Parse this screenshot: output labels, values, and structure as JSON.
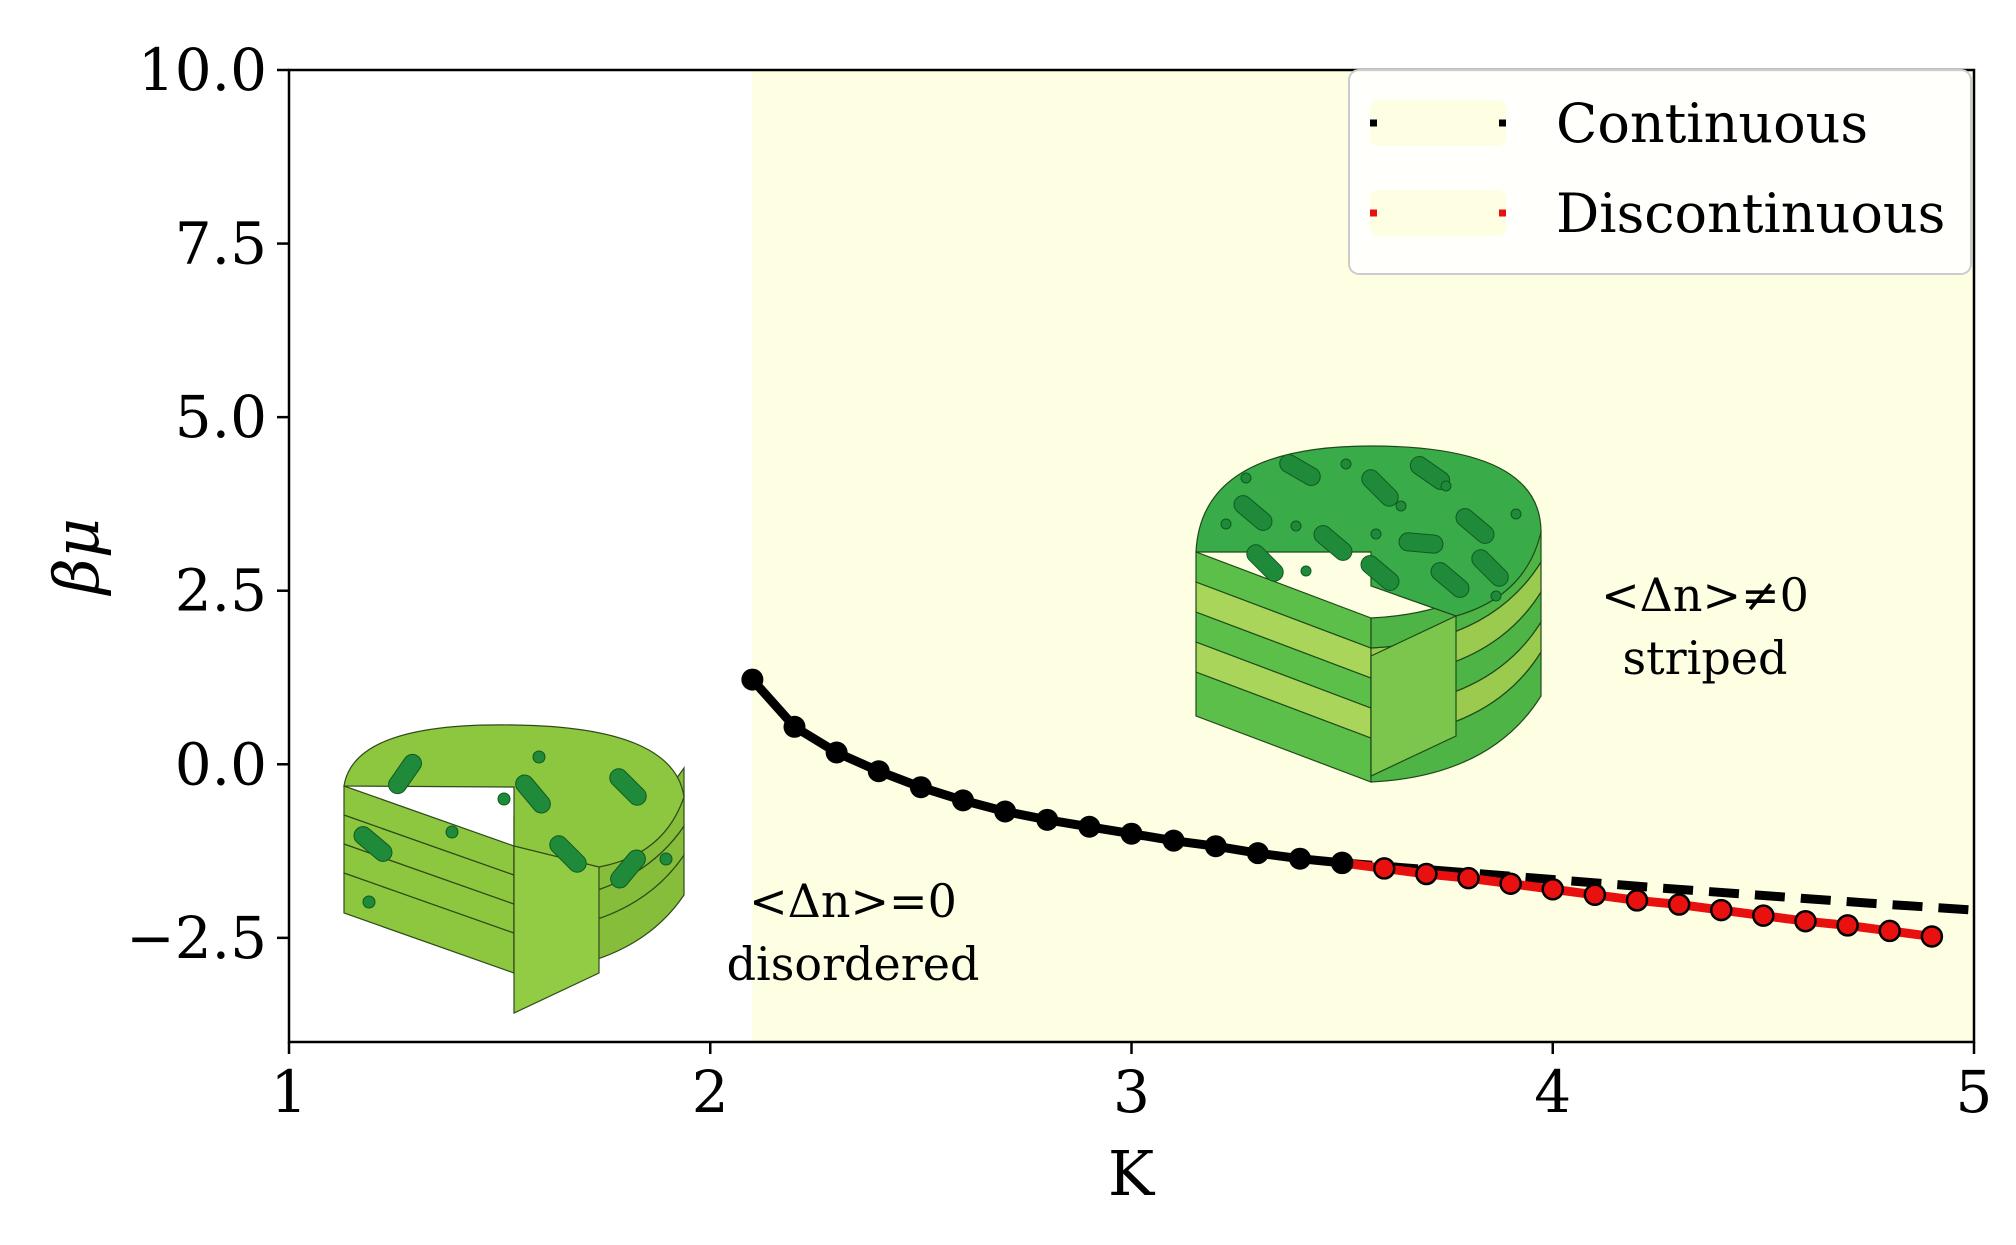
{
  "chart_data": {
    "type": "line",
    "xlabel": "K",
    "ylabel": "βμ",
    "xlim": [
      1,
      5
    ],
    "ylim": [
      -4,
      10
    ],
    "xticks": [
      "1",
      "2",
      "3",
      "4",
      "5"
    ],
    "yticks": [
      "10.0",
      "7.5",
      "5.0",
      "2.5",
      "0.0",
      "−2.5"
    ],
    "xtick_values": [
      1,
      2,
      3,
      4,
      5
    ],
    "ytick_values": [
      10,
      7.5,
      5,
      2.5,
      0,
      -2.5
    ],
    "shaded_region": {
      "x_from": 2.1,
      "x_to": 5,
      "y_from": -4,
      "y_to": 10,
      "color": "#fefee2"
    },
    "legend": {
      "position": "top-right",
      "entries": [
        {
          "label": "Continuous",
          "color": "#000000"
        },
        {
          "label": "Discontinuous",
          "color": "#e8110f"
        }
      ]
    },
    "series": [
      {
        "name": "Continuous",
        "color": "#000000",
        "style": "solid-markers",
        "x": [
          2.1,
          2.2,
          2.3,
          2.4,
          2.5,
          2.6,
          2.7,
          2.8,
          2.9,
          3.0,
          3.1,
          3.2,
          3.3,
          3.4,
          3.5
        ],
        "y": [
          1.22,
          0.54,
          0.17,
          -0.1,
          -0.33,
          -0.52,
          -0.68,
          -0.8,
          -0.9,
          -1.0,
          -1.1,
          -1.18,
          -1.28,
          -1.36,
          -1.42
        ]
      },
      {
        "name": "Continuous (extrapolated)",
        "color": "#000000",
        "style": "dashed",
        "x": [
          3.5,
          3.75,
          4.0,
          4.25,
          4.5,
          4.75,
          5.0
        ],
        "y": [
          -1.42,
          -1.54,
          -1.66,
          -1.78,
          -1.89,
          -2.0,
          -2.1
        ]
      },
      {
        "name": "Discontinuous",
        "color": "#e8110f",
        "style": "solid-markers",
        "x": [
          3.5,
          3.6,
          3.7,
          3.8,
          3.9,
          4.0,
          4.1,
          4.2,
          4.3,
          4.4,
          4.5,
          4.6,
          4.7,
          4.8,
          4.9
        ],
        "y": [
          -1.42,
          -1.5,
          -1.58,
          -1.64,
          -1.72,
          -1.8,
          -1.88,
          -1.96,
          -2.02,
          -2.1,
          -2.18,
          -2.26,
          -2.32,
          -2.4,
          -2.48
        ]
      }
    ],
    "annotations": {
      "disordered": {
        "line1": "<Δn>=0",
        "line2": "disordered"
      },
      "striped": {
        "line1": "<Δn>≠0",
        "line2": "striped"
      }
    },
    "icons": [
      "disordered-cake-icon",
      "striped-cake-icon"
    ],
    "colors": {
      "disordered_green": "#8dc63f",
      "striped_green": "#3aab49",
      "rod_dark": "#1f8a3a"
    }
  }
}
